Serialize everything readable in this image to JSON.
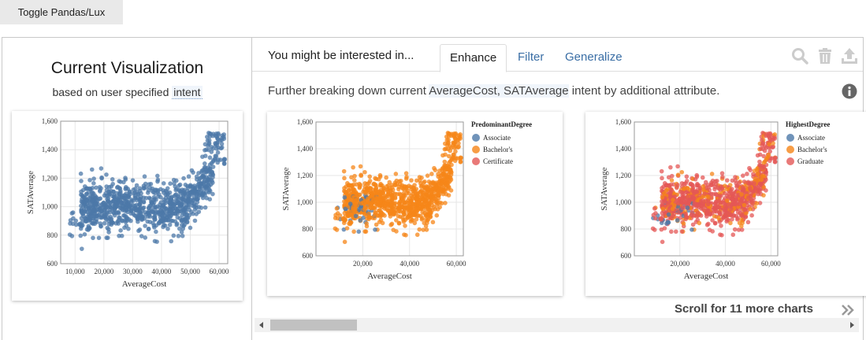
{
  "toggle": {
    "label": "Toggle Pandas/Lux"
  },
  "current": {
    "title": "Current Visualization",
    "subtitle_prefix": "based on user specified ",
    "subtitle_intent": "intent"
  },
  "recs": {
    "header": "You might be interested in...",
    "tabs": [
      {
        "label": "Enhance"
      },
      {
        "label": "Filter"
      },
      {
        "label": "Generalize"
      }
    ],
    "description_prefix": "Further breaking down current ",
    "description_attr": "AverageCost, SATAverage",
    "description_suffix": " intent by additional attribute.",
    "scroll_text": "Scroll for 11 more charts",
    "icons": [
      "search-icon",
      "trash-icon",
      "export-icon",
      "info-icon",
      "double-chevron-right-icon"
    ]
  },
  "colors": {
    "Associate": "#4c78a8",
    "Bachelor's": "#f58518",
    "Certificate": "#e45756",
    "Graduate": "#e45756"
  },
  "chart_data": [
    {
      "type": "scatter",
      "xlabel": "AverageCost",
      "ylabel": "SATAverage",
      "xlim": [
        5000,
        63000
      ],
      "ylim": [
        600,
        1600
      ],
      "xticks": [
        "10,000",
        "20,000",
        "30,000",
        "40,000",
        "50,000",
        "60,000"
      ],
      "yticks": [
        "600",
        "800",
        "1,000",
        "1,200",
        "1,400",
        "1,600"
      ],
      "grid": true,
      "series": [
        {
          "values": "~1000 points; dense cloud 15,000–45,000 at 900–1,150, rising to 1,300–1,520 near 55,000–62,000"
        }
      ]
    },
    {
      "type": "scatter",
      "xlabel": "AverageCost",
      "ylabel": "SATAverage",
      "xlim": [
        0,
        63000
      ],
      "ylim": [
        600,
        1600
      ],
      "xticks": [
        "20,000",
        "40,000",
        "60,000"
      ],
      "yticks": [
        "600",
        "800",
        "1,000",
        "1,200",
        "1,400",
        "1,600"
      ],
      "legend": {
        "title": "PredominantDegree",
        "position": "right",
        "entries": [
          "Associate",
          "Bachelor's",
          "Certificate"
        ]
      },
      "series": [
        {
          "name": "Associate",
          "values": "few points, ~10,000–25,000 at 800–1,050"
        },
        {
          "name": "Bachelor's",
          "values": "majority of points, same shape as current visualization"
        },
        {
          "name": "Certificate",
          "values": "very few points"
        }
      ]
    },
    {
      "type": "scatter",
      "xlabel": "AverageCost",
      "ylabel": "SATAverage",
      "xlim": [
        0,
        63000
      ],
      "ylim": [
        600,
        1600
      ],
      "xticks": [
        "20,000",
        "40,000",
        "60,000"
      ],
      "yticks": [
        "600",
        "800",
        "1,000",
        "1,200",
        "1,400",
        "1,600"
      ],
      "legend": {
        "title": "HighestDegree",
        "position": "right",
        "entries": [
          "Associate",
          "Bachelor's",
          "Graduate"
        ]
      },
      "series": [
        {
          "name": "Associate",
          "values": "few points, ~10,000–25,000 at 800–1,000"
        },
        {
          "name": "Bachelor's",
          "values": "many points spread across range"
        },
        {
          "name": "Graduate",
          "values": "majority of points, same shape as current visualization"
        }
      ]
    }
  ]
}
